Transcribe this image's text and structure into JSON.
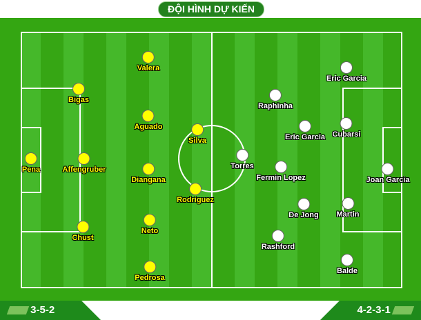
{
  "title": "ĐỘI HÌNH DỰ KIẾN",
  "colors": {
    "home": "#ffff00",
    "away": "#ffffff",
    "pitch": "#34a612"
  },
  "home": {
    "formation": "3-5-2",
    "players": [
      {
        "name": "Pena"
      },
      {
        "name": "Bigas"
      },
      {
        "name": "Affengruber"
      },
      {
        "name": "Chust"
      },
      {
        "name": "Valera"
      },
      {
        "name": "Aguado"
      },
      {
        "name": "Diangana"
      },
      {
        "name": "Neto"
      },
      {
        "name": "Pedrosa"
      },
      {
        "name": "Silva"
      },
      {
        "name": "Rodriguez"
      }
    ]
  },
  "away": {
    "formation": "4-2-3-1",
    "players": [
      {
        "name": "Joan Garcia"
      },
      {
        "name": "Eric Garcia"
      },
      {
        "name": "Cubarsi"
      },
      {
        "name": "Martin"
      },
      {
        "name": "Balde"
      },
      {
        "name": "Eric Garcia"
      },
      {
        "name": "De Jong"
      },
      {
        "name": "Raphinha"
      },
      {
        "name": "Fermin Lopez"
      },
      {
        "name": "Rashford"
      },
      {
        "name": "Torres"
      }
    ]
  }
}
